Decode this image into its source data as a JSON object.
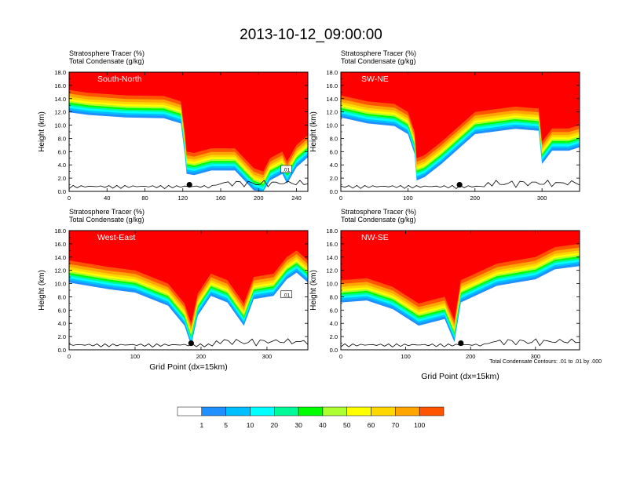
{
  "figure": {
    "title": "2013-10-12_09:00:00",
    "field_labels": [
      "Stratosphere Tracer   (%)",
      "Total Condensate   (g/kg)"
    ],
    "x_axis_title": "Grid Point (dx=15km)",
    "contour_note": "Total Condensate Contours: .01 to .01 by .000"
  },
  "chart_data": [
    {
      "type": "filled-contour",
      "panel_label": "South-North",
      "ylabel": "Height (km)",
      "xlim": [
        0,
        252
      ],
      "ylim": [
        0,
        18
      ],
      "xticks": [
        0,
        40,
        80,
        120,
        160,
        200,
        240
      ],
      "yticks": [
        0,
        2,
        4,
        6,
        8,
        10,
        12,
        14,
        16,
        18
      ],
      "ytick_labels": [
        "0.0",
        "2.0",
        "4.0",
        "6.0",
        "8.0",
        "10.0",
        "12.0",
        "14.0",
        "16.0",
        "18.0"
      ],
      "contour_label": ".01",
      "marker": {
        "x": 127,
        "y": 1.0
      },
      "tracer_boundary": [
        [
          0,
          15.3
        ],
        [
          20,
          14.9
        ],
        [
          60,
          14.5
        ],
        [
          100,
          14.4
        ],
        [
          118,
          13.6
        ],
        [
          122,
          9.0
        ],
        [
          124,
          6.0
        ],
        [
          132,
          5.8
        ],
        [
          150,
          6.5
        ],
        [
          175,
          6.5
        ],
        [
          195,
          3.5
        ],
        [
          205,
          3.0
        ],
        [
          212,
          5.0
        ],
        [
          225,
          6.0
        ],
        [
          230,
          4.5
        ],
        [
          240,
          7.0
        ],
        [
          252,
          8.5
        ]
      ]
    },
    {
      "type": "filled-contour",
      "panel_label": "SW-NE",
      "ylabel": "Height (km)",
      "xlim": [
        0,
        356
      ],
      "ylim": [
        0,
        18
      ],
      "xticks": [
        0,
        100,
        200,
        300
      ],
      "yticks": [
        0,
        2,
        4,
        6,
        8,
        10,
        12,
        14,
        16,
        18
      ],
      "ytick_labels": [
        "0.0",
        "2.0",
        "4.0",
        "6.0",
        "8.0",
        "10.0",
        "12.0",
        "14.0",
        "16.0",
        "18.0"
      ],
      "marker": {
        "x": 177,
        "y": 1.0
      },
      "tracer_boundary": [
        [
          0,
          14.5
        ],
        [
          40,
          13.6
        ],
        [
          80,
          13.2
        ],
        [
          100,
          12.0
        ],
        [
          110,
          9.0
        ],
        [
          113,
          5.0
        ],
        [
          125,
          5.5
        ],
        [
          150,
          7.5
        ],
        [
          200,
          12.0
        ],
        [
          260,
          12.8
        ],
        [
          295,
          12.5
        ],
        [
          300,
          7.5
        ],
        [
          315,
          9.5
        ],
        [
          340,
          9.5
        ],
        [
          356,
          10.0
        ]
      ]
    },
    {
      "type": "filled-contour",
      "panel_label": "West-East",
      "ylabel": "Height (km)",
      "xlim": [
        0,
        362
      ],
      "ylim": [
        0,
        18
      ],
      "xticks": [
        0,
        100,
        200,
        300
      ],
      "yticks": [
        0,
        2,
        4,
        6,
        8,
        10,
        12,
        14,
        16,
        18
      ],
      "ytick_labels": [
        "0.0",
        "2.0",
        "4.0",
        "6.0",
        "8.0",
        "10.0",
        "12.0",
        "14.0",
        "16.0",
        "18.0"
      ],
      "contour_label": ".01",
      "marker": {
        "x": 185,
        "y": 1.0
      },
      "tracer_boundary": [
        [
          0,
          13.5
        ],
        [
          60,
          12.5
        ],
        [
          100,
          12.0
        ],
        [
          150,
          10.0
        ],
        [
          175,
          7.0
        ],
        [
          185,
          4.0
        ],
        [
          195,
          8.5
        ],
        [
          215,
          11.5
        ],
        [
          240,
          10.5
        ],
        [
          265,
          7.0
        ],
        [
          280,
          11.0
        ],
        [
          310,
          11.5
        ],
        [
          330,
          14.0
        ],
        [
          345,
          15.0
        ],
        [
          362,
          13.5
        ]
      ]
    },
    {
      "type": "filled-contour",
      "panel_label": "NW-SE",
      "ylabel": "Height (km)",
      "xlim": [
        0,
        368
      ],
      "ylim": [
        0,
        18
      ],
      "xticks": [
        0,
        100,
        200,
        300
      ],
      "yticks": [
        0,
        2,
        4,
        6,
        8,
        10,
        12,
        14,
        16,
        18
      ],
      "ytick_labels": [
        "0.0",
        "2.0",
        "4.0",
        "6.0",
        "8.0",
        "10.0",
        "12.0",
        "14.0",
        "16.0",
        "18.0"
      ],
      "marker": {
        "x": 185,
        "y": 1.0
      },
      "tracer_boundary": [
        [
          0,
          10.5
        ],
        [
          40,
          10.8
        ],
        [
          80,
          9.5
        ],
        [
          120,
          7.0
        ],
        [
          160,
          8.0
        ],
        [
          175,
          4.5
        ],
        [
          185,
          10.5
        ],
        [
          240,
          13.0
        ],
        [
          300,
          14.0
        ],
        [
          330,
          15.5
        ],
        [
          368,
          16.0
        ]
      ]
    }
  ],
  "colorbar": {
    "levels": [
      "1",
      "5",
      "10",
      "20",
      "30",
      "40",
      "50",
      "60",
      "70",
      "100"
    ],
    "colors": [
      "#ffffff",
      "#1e90ff",
      "#00bfff",
      "#00ffff",
      "#00fa9a",
      "#00ff00",
      "#adff2f",
      "#ffff00",
      "#ffd700",
      "#ffa500",
      "#ff5500",
      "#ff0000"
    ]
  }
}
